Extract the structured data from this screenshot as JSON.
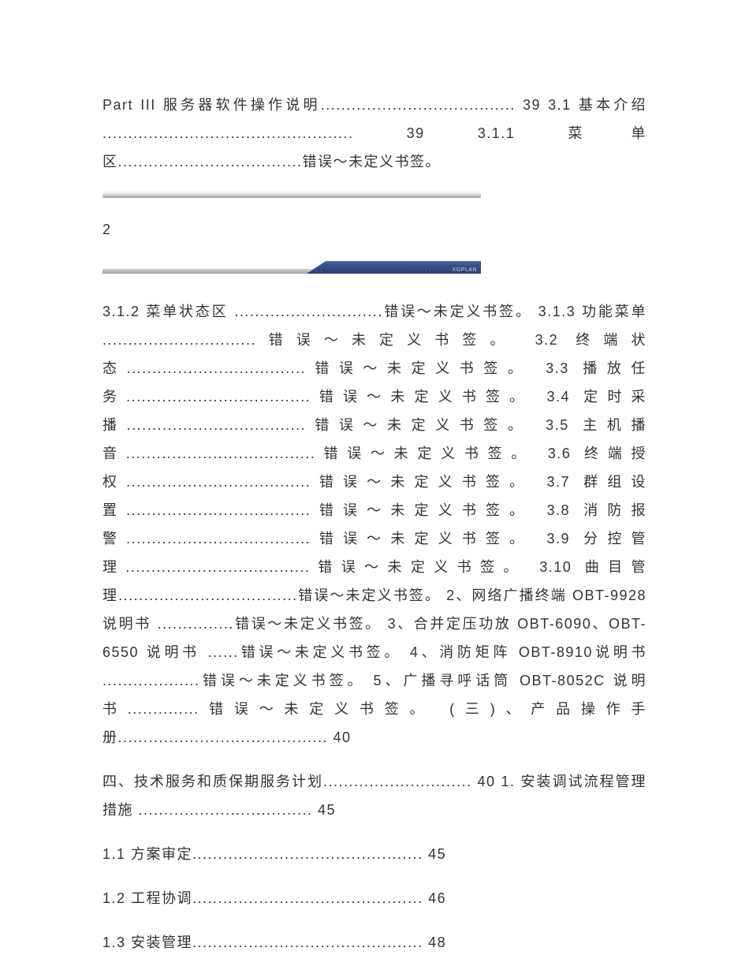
{
  "paragraph1": "Part III 服务器软件操作说明...................................... 39 3.1 基本介绍 ................................................. 39 3.1.1 菜单区....................................错误～未定义书签。",
  "pageNumber": "2",
  "dividerText": "· · · · · · · · · ·XGPLAN",
  "paragraph2": "3.1.2 菜单状态区 .............................错误～未定义书签。 3.1.3 功能菜单 ..............................错误～未定义书签。 3.2 终端状态...................................错误～未定义书签。 3.3 播放任务....................................错误～未定义书签。 3.4 定时采播...................................错误～未定义书签。 3.5 主机播音.....................................错误～未定义书签。 3.6 终端授权....................................错误～未定义书签。 3.7 群组设置....................................错误～未定义书签。 3.8 消防报警....................................错误～未定义书签。 3.9 分控管理....................................错误～未定义书签。 3.10 曲目管理...................................错误～未定义书签。 2、网络广播终端 OBT-9928 说明书 ...............错误～未定义书签。 3、合并定压功放 OBT-6090、OBT-6550 说明书 ......错误～未定义书签。 4、消防矩阵 OBT-8910说明书 ...................错误～未定义书签。 5、广播寻呼话筒 OBT-8052C 说明书..............错误～未定义书签。 (三)、产品操作手册......................................... 40",
  "paragraph3": "四、技术服务和质保期服务计划............................. 40 1. 安装调试流程管理措施 .................................. 45",
  "paragraph4": "1.1 方案审定............................................. 45",
  "paragraph5": "1.2 工程协调............................................. 46",
  "paragraph6": "1.3 安装管理............................................. 48"
}
